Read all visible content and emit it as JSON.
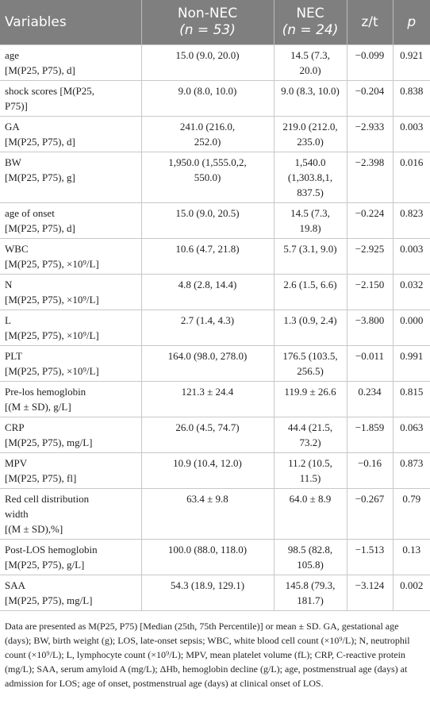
{
  "table": {
    "header": [
      [
        "Variables"
      ],
      [
        "Non-NEC",
        "(n = 53)"
      ],
      [
        "NEC",
        "(n = 24)"
      ],
      [
        "z/t"
      ],
      [
        "p"
      ]
    ],
    "rows": [
      [
        [
          "age",
          "[M(P25, P75), d]"
        ],
        [
          "15.0 (9.0, 20.0)"
        ],
        [
          "14.5 (7.3, 20.0)"
        ],
        [
          "−0.099"
        ],
        [
          "0.921"
        ]
      ],
      [
        [
          "shock scores [M(P25,",
          "P75)]"
        ],
        [
          "9.0 (8.0, 10.0)"
        ],
        [
          "9.0 (8.3, 10.0)"
        ],
        [
          "−0.204"
        ],
        [
          "0.838"
        ]
      ],
      [
        [
          "GA",
          "[M(P25, P75), d]"
        ],
        [
          "241.0 (216.0,",
          "252.0)"
        ],
        [
          "219.0 (212.0,",
          "235.0)"
        ],
        [
          "−2.933"
        ],
        [
          "0.003"
        ]
      ],
      [
        [
          "BW",
          "[M(P25, P75), g]"
        ],
        [
          "1,950.0 (1,555.0,2,",
          "550.0)"
        ],
        [
          "1,540.0",
          "(1,303.8,1, 837.5)"
        ],
        [
          "−2.398"
        ],
        [
          "0.016"
        ]
      ],
      [
        [
          "age of onset",
          "[M(P25, P75), d]"
        ],
        [
          "15.0 (9.0, 20.5)"
        ],
        [
          "14.5 (7.3, 19.8)"
        ],
        [
          "−0.224"
        ],
        [
          "0.823"
        ]
      ],
      [
        [
          "WBC",
          "[M(P25, P75), ×10⁹/L]"
        ],
        [
          "10.6 (4.7, 21.8)"
        ],
        [
          "5.7 (3.1, 9.0)"
        ],
        [
          "−2.925"
        ],
        [
          "0.003"
        ]
      ],
      [
        [
          "N",
          "[M(P25, P75), ×10⁹/L]"
        ],
        [
          "4.8 (2.8, 14.4)"
        ],
        [
          "2.6 (1.5, 6.6)"
        ],
        [
          "−2.150"
        ],
        [
          "0.032"
        ]
      ],
      [
        [
          "L",
          "[M(P25, P75), ×10⁹/L]"
        ],
        [
          "2.7 (1.4, 4.3)"
        ],
        [
          "1.3 (0.9, 2.4)"
        ],
        [
          "−3.800"
        ],
        [
          "0.000"
        ]
      ],
      [
        [
          "PLT",
          "[M(P25, P75), ×10⁹/L]"
        ],
        [
          "164.0 (98.0, 278.0)"
        ],
        [
          "176.5 (103.5,",
          "256.5)"
        ],
        [
          "−0.011"
        ],
        [
          "0.991"
        ]
      ],
      [
        [
          "Pre-los hemoglobin",
          "[(M ± SD), g/L]"
        ],
        [
          "121.3 ± 24.4"
        ],
        [
          "119.9 ± 26.6"
        ],
        [
          "0.234"
        ],
        [
          "0.815"
        ]
      ],
      [
        [
          "CRP",
          "[M(P25, P75), mg/L]"
        ],
        [
          "26.0 (4.5, 74.7)"
        ],
        [
          "44.4 (21.5, 73.2)"
        ],
        [
          "−1.859"
        ],
        [
          "0.063"
        ]
      ],
      [
        [
          "MPV",
          "[M(P25, P75), fl]"
        ],
        [
          "10.9 (10.4, 12.0)"
        ],
        [
          "11.2 (10.5, 11.5)"
        ],
        [
          "−0.16"
        ],
        [
          "0.873"
        ]
      ],
      [
        [
          "Red cell distribution",
          "width",
          "[(M ± SD),%]"
        ],
        [
          "63.4 ± 9.8"
        ],
        [
          "64.0 ± 8.9"
        ],
        [
          "−0.267"
        ],
        [
          "0.79"
        ]
      ],
      [
        [
          "Post-LOS hemoglobin",
          "[M(P25, P75), g/L]"
        ],
        [
          "100.0 (88.0, 118.0)"
        ],
        [
          "98.5 (82.8, 105.8)"
        ],
        [
          "−1.513"
        ],
        [
          "0.13"
        ]
      ],
      [
        [
          "SAA",
          "[M(P25, P75), mg/L]"
        ],
        [
          "54.3 (18.9, 129.1)"
        ],
        [
          "145.8 (79.3,",
          "181.7)"
        ],
        [
          "−3.124"
        ],
        [
          "0.002"
        ]
      ]
    ]
  },
  "footnote": "Data are presented as M(P25, P75) [Median (25th, 75th Percentile)] or mean ± SD. GA, gestational age (days); BW, birth weight (g); LOS, late-onset sepsis; WBC, white blood cell count (×10⁹/L); N, neutrophil count (×10⁹/L); L, lymphocyte count (×10⁹/L); MPV, mean platelet volume (fL); CRP, C-reactive protein (mg/L); SAA, serum amyloid A (mg/L); ΔHb, hemoglobin decline (g/L); age, postmenstrual age (days) at admission for LOS; age of onset, postmenstrual age (days) at clinical onset of LOS."
}
